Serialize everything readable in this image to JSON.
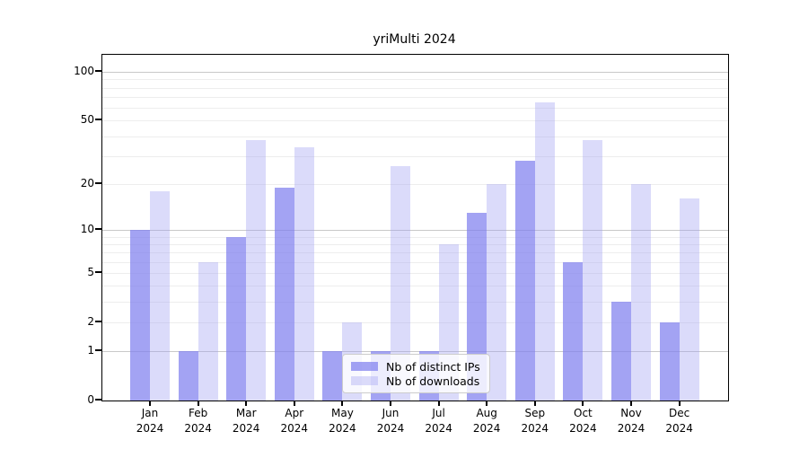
{
  "chart_data": {
    "type": "bar",
    "title": "yriMulti 2024",
    "categories": [
      "Jan 2024",
      "Feb 2024",
      "Mar 2024",
      "Apr 2024",
      "May 2024",
      "Jun 2024",
      "Jul 2024",
      "Aug 2024",
      "Sep 2024",
      "Oct 2024",
      "Nov 2024",
      "Dec 2024"
    ],
    "series": [
      {
        "name": "Nb of distinct IPs",
        "values": [
          10,
          1,
          9,
          19,
          1,
          1,
          1,
          13,
          28,
          6,
          3,
          2
        ],
        "color": "rgba(128,128,238,0.72)"
      },
      {
        "name": "Nb of downloads",
        "values": [
          18,
          6,
          38,
          34,
          2,
          26,
          8,
          20,
          65,
          38,
          20,
          16
        ],
        "color": "rgba(160,160,242,0.38)"
      }
    ],
    "yscale": "log10(value+1)",
    "ylim": [
      0,
      128
    ],
    "yticks": [
      0,
      1,
      2,
      5,
      10,
      20,
      50,
      100
    ],
    "major_gridlines": [
      1,
      10,
      100
    ],
    "minor_gridlines": [
      2,
      3,
      4,
      5,
      6,
      7,
      8,
      9,
      20,
      30,
      40,
      50,
      60,
      70,
      80,
      90
    ],
    "grid_color_major": "#c9c9c9",
    "grid_color_minor": "#ededed",
    "legend_position": "inside-bottom-center",
    "xlabel": "",
    "ylabel": ""
  }
}
